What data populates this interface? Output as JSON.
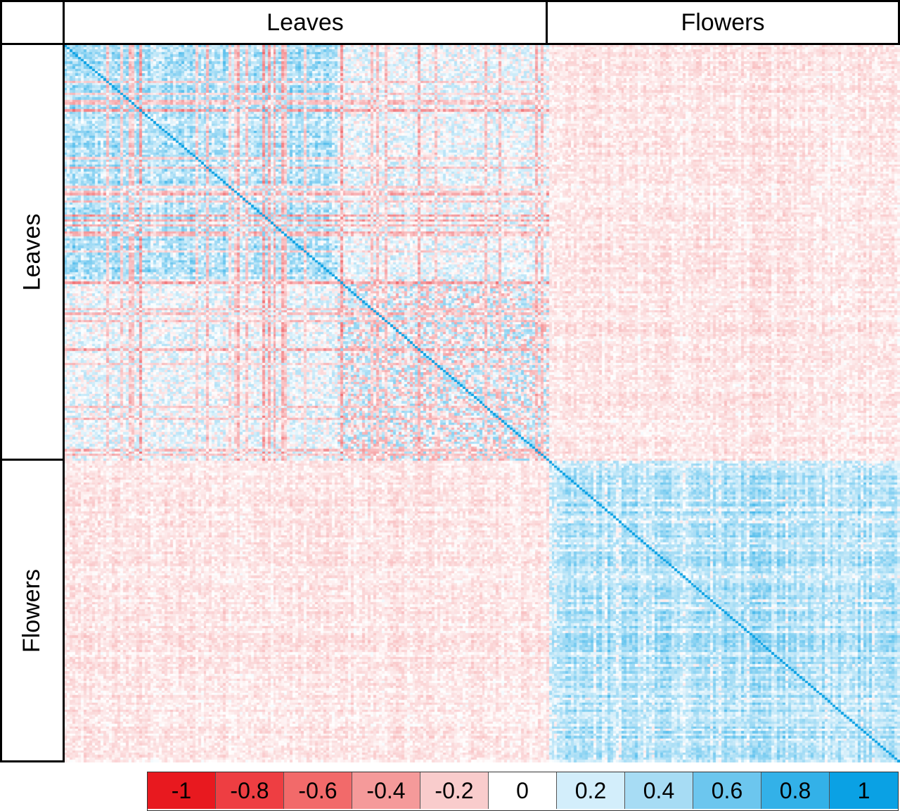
{
  "chart_data": {
    "type": "heatmap",
    "title": "",
    "row_groups": [
      {
        "label": "Leaves",
        "share": 0.58
      },
      {
        "label": "Flowers",
        "share": 0.42
      }
    ],
    "col_groups": [
      {
        "label": "Leaves",
        "share": 0.58
      },
      {
        "label": "Flowers",
        "share": 0.42
      }
    ],
    "block_mean_values": {
      "leaves_leaves": 0.35,
      "leaves_flowers": -0.15,
      "flowers_leaves": -0.15,
      "flowers_flowers": 0.65
    },
    "value_range": [
      -1,
      1
    ],
    "colorbar": {
      "ticks": [
        "-1",
        "-0.8",
        "-0.6",
        "-0.4",
        "-0.2",
        "0",
        "0.2",
        "0.4",
        "0.6",
        "0.8",
        "1"
      ],
      "values": [
        -1,
        -0.8,
        -0.6,
        -0.4,
        -0.2,
        0,
        0.2,
        0.4,
        0.6,
        0.8,
        1
      ],
      "colors": [
        "#e8191f",
        "#ee3e42",
        "#f26a6a",
        "#f59a9a",
        "#f9cccc",
        "#ffffff",
        "#d3eefb",
        "#a7dcf4",
        "#6cc6ee",
        "#33b1e8",
        "#0aa1e4"
      ]
    },
    "negative_color": "#e8191f",
    "positive_color": "#0aa1e4"
  }
}
